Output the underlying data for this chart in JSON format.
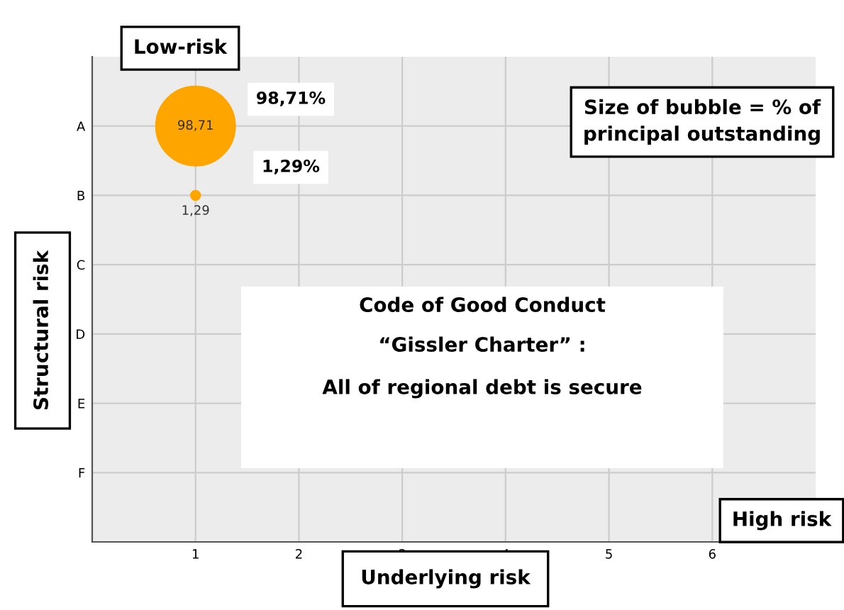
{
  "chart_data": {
    "type": "bubble",
    "xlabel": "Underlying risk",
    "ylabel": "Structural risk",
    "orientation": "horizontal",
    "categories": [
      "A",
      "B",
      "C",
      "D",
      "E",
      "F"
    ],
    "values": [
      1,
      1,
      null,
      null,
      null,
      null
    ],
    "sizes": [
      98.71,
      1.29,
      null,
      null,
      null,
      null
    ],
    "value_labels": [
      "98,71",
      "1,29",
      null,
      null,
      null,
      null
    ],
    "color": "#ffa500",
    "xlim": [
      0,
      7
    ],
    "xticks": [
      1,
      2,
      3,
      4,
      5,
      6
    ],
    "grid": true,
    "annotations": [
      "Low-risk",
      "Size of bubble = % of\nprincipal outstanding",
      "98,71%",
      "1,29%",
      "Code of Good Conduct",
      "“Gissler Charter” :",
      "All of regional debt is secure",
      "High risk"
    ]
  }
}
